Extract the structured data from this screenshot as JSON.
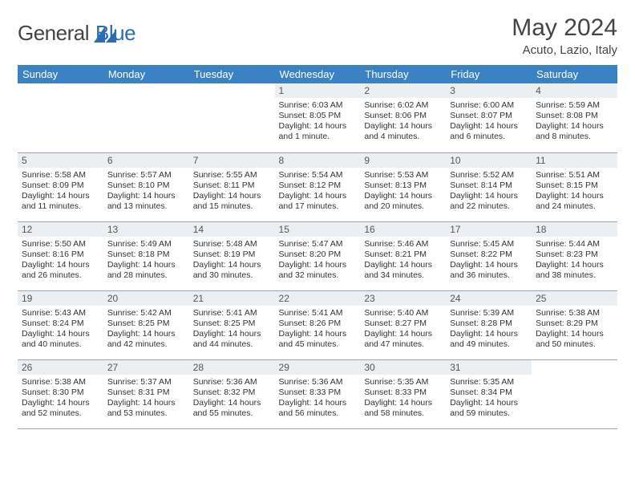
{
  "brand": {
    "text1": "General",
    "text2": "Blue"
  },
  "title": "May 2024",
  "location": "Acuto, Lazio, Italy",
  "colors": {
    "header_bg": "#3b82c4",
    "header_text": "#ffffff",
    "daynum_bg": "#eceff2",
    "cell_border": "#9aa5b1",
    "text": "#333333",
    "brand_gray": "#555555",
    "brand_blue": "#2a6db3"
  },
  "weekdays": [
    "Sunday",
    "Monday",
    "Tuesday",
    "Wednesday",
    "Thursday",
    "Friday",
    "Saturday"
  ],
  "weeks": [
    [
      null,
      null,
      null,
      {
        "n": "1",
        "sr": "6:03 AM",
        "ss": "8:05 PM",
        "dl": "14 hours and 1 minute."
      },
      {
        "n": "2",
        "sr": "6:02 AM",
        "ss": "8:06 PM",
        "dl": "14 hours and 4 minutes."
      },
      {
        "n": "3",
        "sr": "6:00 AM",
        "ss": "8:07 PM",
        "dl": "14 hours and 6 minutes."
      },
      {
        "n": "4",
        "sr": "5:59 AM",
        "ss": "8:08 PM",
        "dl": "14 hours and 8 minutes."
      }
    ],
    [
      {
        "n": "5",
        "sr": "5:58 AM",
        "ss": "8:09 PM",
        "dl": "14 hours and 11 minutes."
      },
      {
        "n": "6",
        "sr": "5:57 AM",
        "ss": "8:10 PM",
        "dl": "14 hours and 13 minutes."
      },
      {
        "n": "7",
        "sr": "5:55 AM",
        "ss": "8:11 PM",
        "dl": "14 hours and 15 minutes."
      },
      {
        "n": "8",
        "sr": "5:54 AM",
        "ss": "8:12 PM",
        "dl": "14 hours and 17 minutes."
      },
      {
        "n": "9",
        "sr": "5:53 AM",
        "ss": "8:13 PM",
        "dl": "14 hours and 20 minutes."
      },
      {
        "n": "10",
        "sr": "5:52 AM",
        "ss": "8:14 PM",
        "dl": "14 hours and 22 minutes."
      },
      {
        "n": "11",
        "sr": "5:51 AM",
        "ss": "8:15 PM",
        "dl": "14 hours and 24 minutes."
      }
    ],
    [
      {
        "n": "12",
        "sr": "5:50 AM",
        "ss": "8:16 PM",
        "dl": "14 hours and 26 minutes."
      },
      {
        "n": "13",
        "sr": "5:49 AM",
        "ss": "8:18 PM",
        "dl": "14 hours and 28 minutes."
      },
      {
        "n": "14",
        "sr": "5:48 AM",
        "ss": "8:19 PM",
        "dl": "14 hours and 30 minutes."
      },
      {
        "n": "15",
        "sr": "5:47 AM",
        "ss": "8:20 PM",
        "dl": "14 hours and 32 minutes."
      },
      {
        "n": "16",
        "sr": "5:46 AM",
        "ss": "8:21 PM",
        "dl": "14 hours and 34 minutes."
      },
      {
        "n": "17",
        "sr": "5:45 AM",
        "ss": "8:22 PM",
        "dl": "14 hours and 36 minutes."
      },
      {
        "n": "18",
        "sr": "5:44 AM",
        "ss": "8:23 PM",
        "dl": "14 hours and 38 minutes."
      }
    ],
    [
      {
        "n": "19",
        "sr": "5:43 AM",
        "ss": "8:24 PM",
        "dl": "14 hours and 40 minutes."
      },
      {
        "n": "20",
        "sr": "5:42 AM",
        "ss": "8:25 PM",
        "dl": "14 hours and 42 minutes."
      },
      {
        "n": "21",
        "sr": "5:41 AM",
        "ss": "8:25 PM",
        "dl": "14 hours and 44 minutes."
      },
      {
        "n": "22",
        "sr": "5:41 AM",
        "ss": "8:26 PM",
        "dl": "14 hours and 45 minutes."
      },
      {
        "n": "23",
        "sr": "5:40 AM",
        "ss": "8:27 PM",
        "dl": "14 hours and 47 minutes."
      },
      {
        "n": "24",
        "sr": "5:39 AM",
        "ss": "8:28 PM",
        "dl": "14 hours and 49 minutes."
      },
      {
        "n": "25",
        "sr": "5:38 AM",
        "ss": "8:29 PM",
        "dl": "14 hours and 50 minutes."
      }
    ],
    [
      {
        "n": "26",
        "sr": "5:38 AM",
        "ss": "8:30 PM",
        "dl": "14 hours and 52 minutes."
      },
      {
        "n": "27",
        "sr": "5:37 AM",
        "ss": "8:31 PM",
        "dl": "14 hours and 53 minutes."
      },
      {
        "n": "28",
        "sr": "5:36 AM",
        "ss": "8:32 PM",
        "dl": "14 hours and 55 minutes."
      },
      {
        "n": "29",
        "sr": "5:36 AM",
        "ss": "8:33 PM",
        "dl": "14 hours and 56 minutes."
      },
      {
        "n": "30",
        "sr": "5:35 AM",
        "ss": "8:33 PM",
        "dl": "14 hours and 58 minutes."
      },
      {
        "n": "31",
        "sr": "5:35 AM",
        "ss": "8:34 PM",
        "dl": "14 hours and 59 minutes."
      },
      null
    ]
  ],
  "labels": {
    "sunrise": "Sunrise: ",
    "sunset": "Sunset: ",
    "daylight": "Daylight: "
  }
}
